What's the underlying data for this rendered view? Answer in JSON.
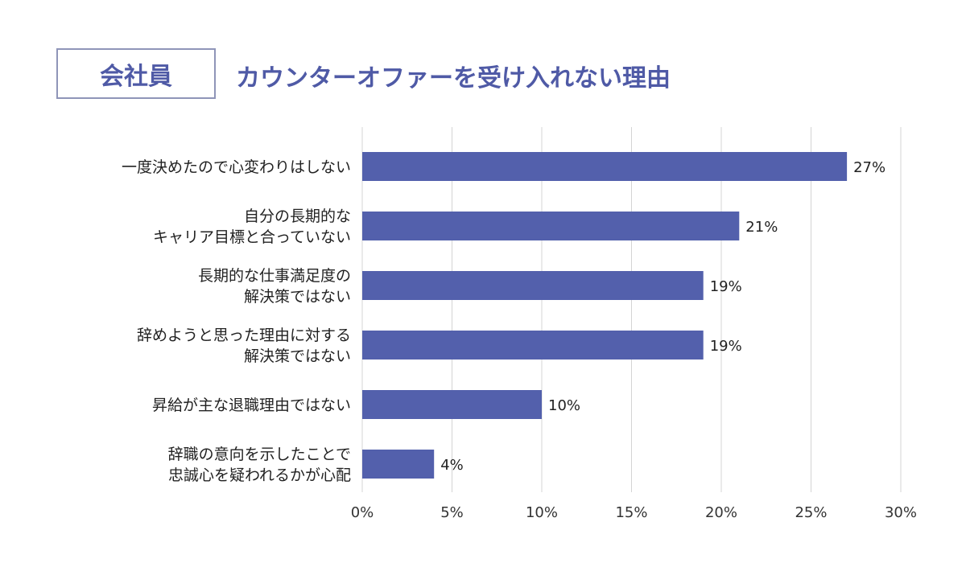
{
  "header": {
    "badge": "会社員",
    "title": "カウンターオファーを受け入れない理由"
  },
  "colors": {
    "bar": "#5360ac",
    "accent": "#4f5aa6",
    "grid": "#d4d4d4",
    "badge_border": "#8f95b8"
  },
  "chart_data": {
    "type": "bar",
    "orientation": "horizontal",
    "title": "カウンターオファーを受け入れない理由",
    "categories": [
      [
        "一度決めたので心変わりはしない"
      ],
      [
        "自分の長期的な",
        "キャリア目標と合っていない"
      ],
      [
        "長期的な仕事満足度の",
        "解決策ではない"
      ],
      [
        "辞めようと思った理由に対する",
        "解決策ではない"
      ],
      [
        "昇給が主な退職理由ではない"
      ],
      [
        "辞職の意向を示したことで",
        "忠誠心を疑われるかが心配"
      ]
    ],
    "values": [
      27,
      21,
      19,
      19,
      10,
      4
    ],
    "value_labels": [
      "27%",
      "21%",
      "19%",
      "19%",
      "10%",
      "4%"
    ],
    "xlim": [
      0,
      30
    ],
    "xticks": [
      "0%",
      "5%",
      "10%",
      "15%",
      "20%",
      "25%",
      "30%"
    ],
    "xtick_values": [
      0,
      5,
      10,
      15,
      20,
      25,
      30
    ],
    "grid": true
  }
}
